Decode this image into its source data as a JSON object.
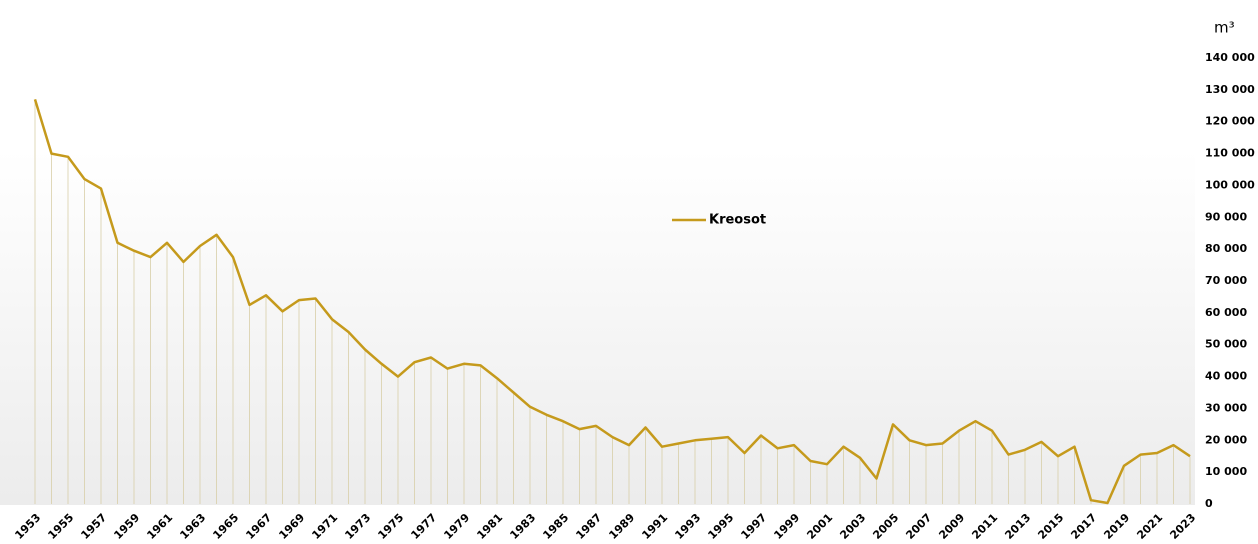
{
  "chart_data": {
    "type": "line",
    "y_label": "m³",
    "categories": [
      "1953",
      null,
      "1955",
      null,
      "1957",
      null,
      "1959",
      null,
      "1961",
      null,
      "1963",
      null,
      "1965",
      null,
      "1967",
      null,
      "1969",
      null,
      "1971",
      null,
      "1973",
      null,
      "1975",
      null,
      "1977",
      null,
      "1979",
      null,
      "1981",
      null,
      "1983",
      null,
      "1985",
      null,
      "1987",
      null,
      "1989",
      null,
      "1991",
      null,
      "1993",
      null,
      "1995",
      null,
      "1997",
      null,
      "1999",
      null,
      "2001",
      null,
      "2003",
      null,
      "2005",
      null,
      "2007",
      null,
      "2009",
      null,
      "2011",
      null,
      "2013",
      null,
      "2015",
      null,
      "2017",
      null,
      "2019",
      null,
      "2021",
      null,
      "2023"
    ],
    "series": [
      {
        "name": "Kreosot",
        "color": "#c59a1c",
        "values": [
          127000,
          110000,
          109000,
          102000,
          99000,
          82000,
          79500,
          77500,
          82000,
          76000,
          81000,
          84500,
          77500,
          62500,
          65500,
          60500,
          64000,
          64500,
          58000,
          54000,
          48500,
          44000,
          40000,
          44500,
          46000,
          42500,
          44000,
          43500,
          39500,
          35000,
          30500,
          28000,
          26000,
          23500,
          24500,
          21000,
          18500,
          24000,
          18000,
          19000,
          20000,
          20500,
          21000,
          16000,
          21500,
          17500,
          18500,
          13500,
          12500,
          18000,
          14500,
          8000,
          25000,
          20000,
          18500,
          19000,
          23000,
          26000,
          23000,
          15500,
          17000,
          19500,
          15000,
          18000,
          1200,
          300,
          12000,
          15500,
          16000,
          18500,
          15000
        ]
      }
    ],
    "ylim": [
      0,
      140000
    ],
    "yticks": [
      0,
      {
        "value": 10000,
        "label": "10 000"
      },
      {
        "value": 20000,
        "label": "20 000"
      },
      {
        "value": 30000,
        "label": "30 000"
      },
      {
        "value": 40000,
        "label": "40 000"
      },
      {
        "value": 50000,
        "label": "50 000"
      },
      {
        "value": 60000,
        "label": "60 000"
      },
      {
        "value": 70000,
        "label": "70 000"
      },
      {
        "value": 80000,
        "label": "80 000"
      },
      {
        "value": 90000,
        "label": "90 000"
      },
      {
        "value": 100000,
        "label": "100 000"
      },
      {
        "value": 110000,
        "label": "110 000"
      },
      {
        "value": 120000,
        "label": "120 000"
      },
      {
        "value": 130000,
        "label": "130 000"
      },
      {
        "value": 140000,
        "label": "140 000"
      }
    ],
    "grid": false,
    "legend": "center"
  }
}
